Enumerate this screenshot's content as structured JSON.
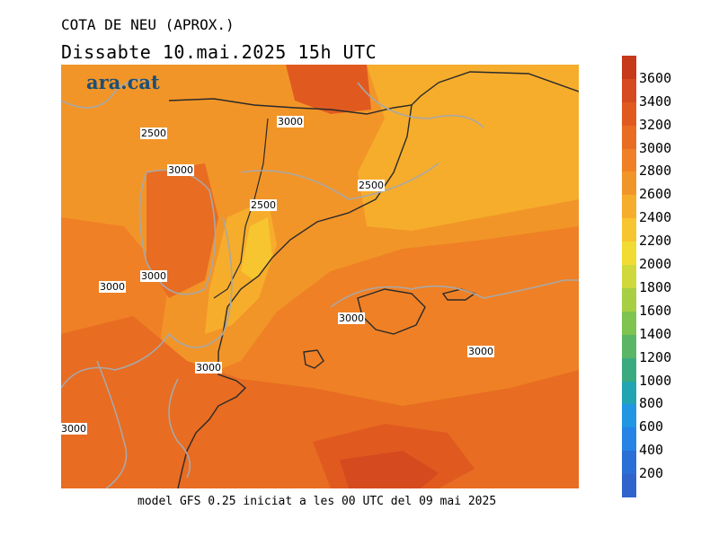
{
  "header": {
    "title": "COTA DE NEU (APROX.)",
    "subtitle": "Dissabte   10.mai.2025 15h UTC"
  },
  "brand": {
    "logo_text": "ara.cat"
  },
  "footer": {
    "text": "model GFS 0.25 iniciat a les 00 UTC del 09 mai 2025"
  },
  "legend": {
    "levels": [
      "3600",
      "3400",
      "3200",
      "3000",
      "2800",
      "2600",
      "2400",
      "2200",
      "2000",
      "1800",
      "1600",
      "1400",
      "1200",
      "1000",
      "800",
      "600",
      "400",
      "200"
    ],
    "colors": [
      "#c6391b",
      "#d54a1e",
      "#e05a20",
      "#e86c22",
      "#ef8025",
      "#f29528",
      "#f6ad2c",
      "#f7c52f",
      "#f2dc34",
      "#cfd93b",
      "#a8cf43",
      "#7fc350",
      "#5ab664",
      "#3caa80",
      "#22a5b2",
      "#2196e3",
      "#2584e6",
      "#2a6fd6"
    ]
  },
  "map": {
    "contour_labels": [
      {
        "text": "3000"
      },
      {
        "text": "2500"
      },
      {
        "text": "3000"
      },
      {
        "text": "2500"
      },
      {
        "text": "2500"
      },
      {
        "text": "3000"
      },
      {
        "text": "3000"
      },
      {
        "text": "3000"
      },
      {
        "text": "3000"
      },
      {
        "text": "3000"
      },
      {
        "text": "3000"
      }
    ]
  }
}
